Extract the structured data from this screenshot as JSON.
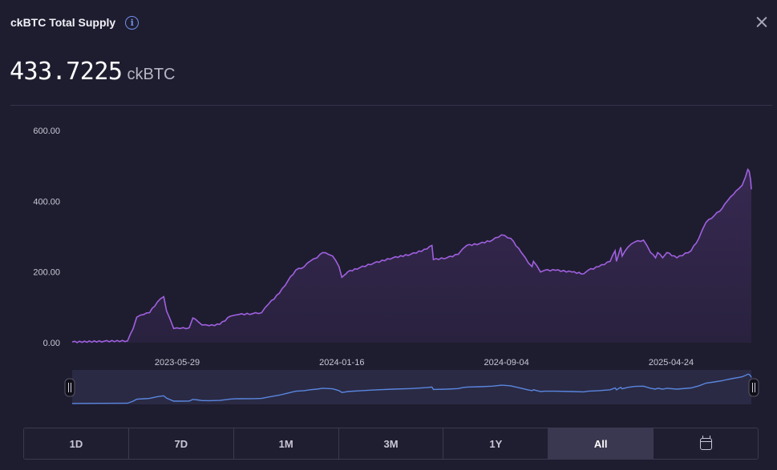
{
  "header": {
    "title": "ckBTC Total Supply"
  },
  "summary": {
    "value": "433.7225",
    "unit": "ckBTC"
  },
  "range_buttons": [
    {
      "label": "1D"
    },
    {
      "label": "7D"
    },
    {
      "label": "1M"
    },
    {
      "label": "3M"
    },
    {
      "label": "1Y"
    },
    {
      "label": "All"
    }
  ],
  "active_range": "All",
  "colors": {
    "line": "#a060e0",
    "area": "#2c2242",
    "navigator_line": "#5a86e0",
    "navigator_bg": "#2a2a44",
    "background": "#1e1d2f"
  },
  "icons": {
    "info": "info-icon",
    "close": "close-icon",
    "calendar": "calendar-icon"
  },
  "chart_data": {
    "type": "area",
    "ylim": [
      0,
      600
    ],
    "y_ticks": [
      "0.00",
      "200.00",
      "400.00",
      "600.00"
    ],
    "x_ticks": [
      "2023-05-29",
      "2024-01-16",
      "2024-09-04",
      "2025-04-24"
    ],
    "grid": false,
    "series": [
      {
        "x": [
          "2023-01-01",
          "2023-02-15",
          "2023-03-20",
          "2023-03-28",
          "2023-04-02",
          "2023-04-12",
          "2023-04-20",
          "2023-05-01",
          "2023-05-10",
          "2023-05-14",
          "2023-05-24",
          "2023-06-02",
          "2023-06-15",
          "2023-06-20",
          "2023-06-27",
          "2023-07-03",
          "2023-07-13",
          "2023-07-28",
          "2023-08-12",
          "2023-08-18",
          "2023-08-24",
          "2023-09-12",
          "2023-09-25",
          "2023-10-05",
          "2023-10-20",
          "2023-11-01",
          "2023-11-12",
          "2023-11-24",
          "2023-12-02",
          "2023-12-12",
          "2023-12-20",
          "2023-12-28",
          "2024-01-03",
          "2024-01-12",
          "2024-01-16",
          "2024-01-22",
          "2024-01-24",
          "2024-02-10",
          "2024-03-01",
          "2024-03-28",
          "2024-04-22",
          "2024-05-15",
          "2024-05-22",
          "2024-05-24",
          "2024-06-12",
          "2024-06-28",
          "2024-07-04",
          "2024-07-10",
          "2024-07-28",
          "2024-08-15",
          "2024-08-28",
          "2024-09-10",
          "2024-09-25",
          "2024-10-05",
          "2024-10-10",
          "2024-10-12",
          "2024-10-22",
          "2024-10-28",
          "2024-11-12",
          "2024-12-05",
          "2024-12-22",
          "2024-12-28",
          "2025-01-12",
          "2025-01-28",
          "2025-02-04",
          "2025-02-06",
          "2025-02-12",
          "2025-02-14",
          "2025-02-22",
          "2025-03-04",
          "2025-03-16",
          "2025-03-26",
          "2025-04-02",
          "2025-04-05",
          "2025-04-12",
          "2025-04-18",
          "2025-05-02",
          "2025-05-22",
          "2025-06-02",
          "2025-06-12",
          "2025-06-24",
          "2025-07-05",
          "2025-07-12",
          "2025-07-21",
          "2025-07-28",
          "2025-08-02",
          "2025-08-07",
          "2025-08-10",
          "2025-08-12",
          "2025-08-14",
          "2025-08-15"
        ],
        "y": [
          2,
          4,
          5,
          40,
          72,
          80,
          85,
          115,
          130,
          90,
          40,
          40,
          42,
          70,
          60,
          50,
          48,
          52,
          75,
          78,
          80,
          82,
          85,
          110,
          140,
          175,
          205,
          215,
          230,
          240,
          255,
          250,
          245,
          215,
          185,
          195,
          200,
          212,
          225,
          240,
          250,
          265,
          275,
          235,
          240,
          250,
          265,
          275,
          280,
          290,
          305,
          295,
          255,
          225,
          215,
          230,
          200,
          205,
          205,
          200,
          195,
          205,
          215,
          230,
          260,
          230,
          270,
          245,
          270,
          285,
          290,
          255,
          240,
          255,
          240,
          255,
          240,
          260,
          295,
          340,
          360,
          380,
          400,
          420,
          435,
          445,
          470,
          490,
          485,
          460,
          433.7225
        ]
      }
    ]
  }
}
